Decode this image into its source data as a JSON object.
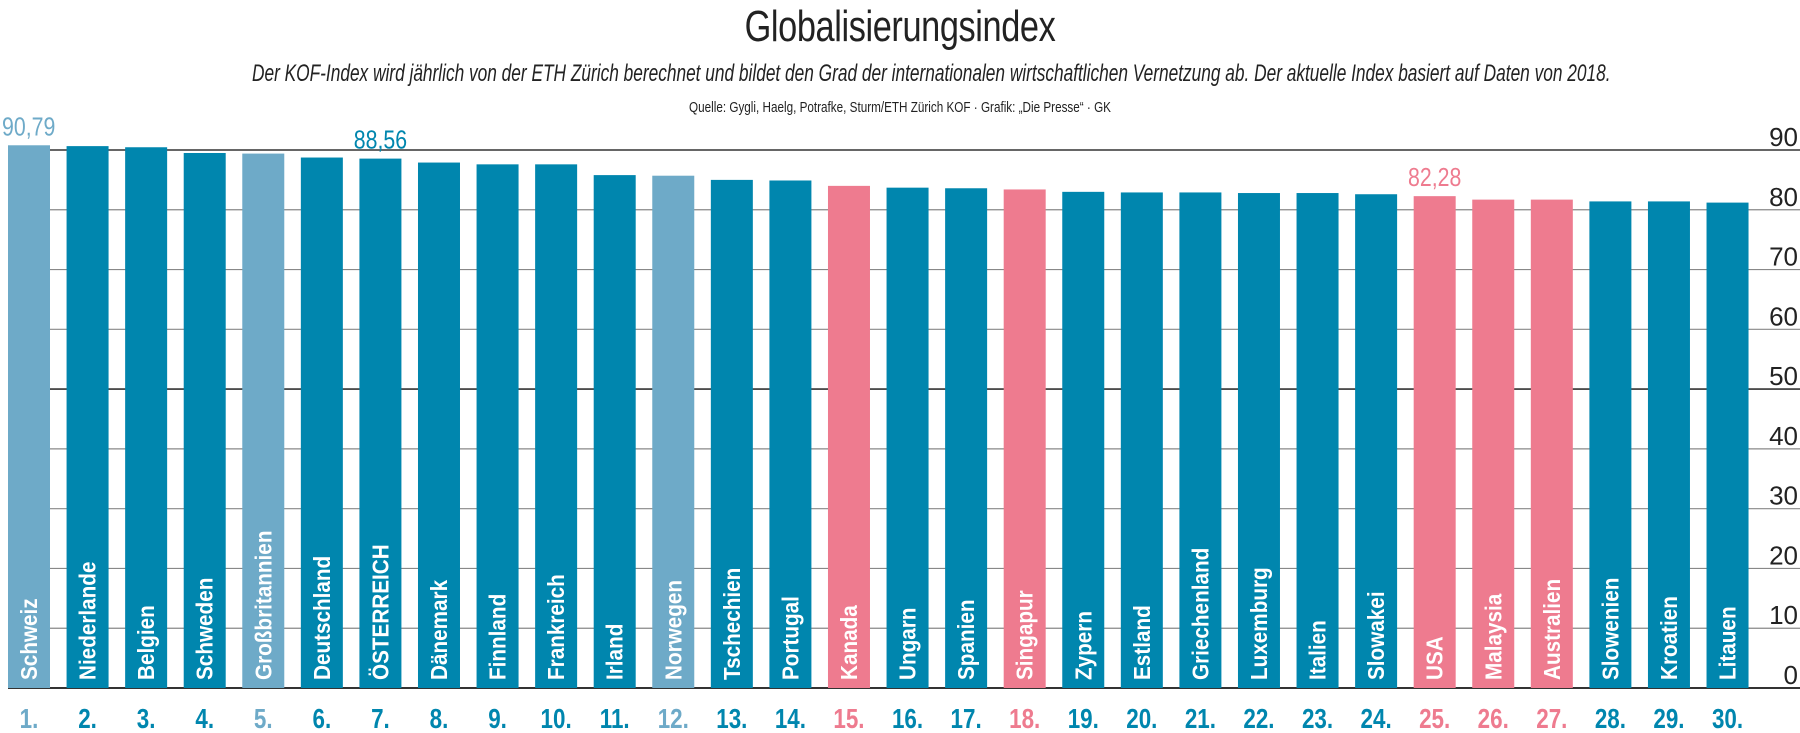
{
  "title": "Globalisierungsindex",
  "subtitle": "Der KOF-Index wird jährlich von der ETH Zürich berechnet und bildet den Grad der internationalen wirtschaftlichen Vernetzung ab. Der aktuelle Index basiert auf Daten von 2018.",
  "source": "Quelle: Gygli, Haelg, Potrafke, Sturm/ETH Zürich KOF  · Grafik: „Die Presse“ · GK",
  "colors": {
    "default": "#0086ae",
    "highlight_light": "#6eaac8",
    "highlight_pink": "#ee7b8f"
  },
  "chart_data": {
    "type": "bar",
    "orientation": "vertical",
    "ylim": [
      0,
      90
    ],
    "yticks": [
      0,
      10,
      20,
      30,
      40,
      50,
      60,
      70,
      80,
      90
    ],
    "yaxis_position": "right",
    "grid": true,
    "categories": [
      "Schweiz",
      "Niederlande",
      "Belgien",
      "Schweden",
      "Großbritannien",
      "Deutschland",
      "ÖSTERREICH",
      "Dänemark",
      "Finnland",
      "Frankreich",
      "Irland",
      "Norwegen",
      "Tschechien",
      "Portugal",
      "Kanada",
      "Ungarn",
      "Spanien",
      "Singapur",
      "Zypern",
      "Estland",
      "Griechenland",
      "Luxemburg",
      "Italien",
      "Slowakei",
      "USA",
      "Malaysia",
      "Australien",
      "Slowenien",
      "Kroatien",
      "Litauen"
    ],
    "ranks": [
      "1.",
      "2.",
      "3.",
      "4.",
      "5.",
      "6.",
      "7.",
      "8.",
      "9.",
      "10.",
      "11.",
      "12.",
      "13.",
      "14.",
      "15.",
      "16.",
      "17.",
      "18.",
      "19.",
      "20.",
      "21.",
      "22.",
      "23.",
      "24.",
      "25.",
      "26.",
      "27.",
      "28.",
      "29.",
      "30."
    ],
    "values": [
      90.79,
      90.65,
      90.46,
      89.5,
      89.4,
      88.74,
      88.56,
      87.9,
      87.6,
      87.6,
      85.8,
      85.7,
      85.0,
      84.9,
      84.0,
      83.7,
      83.6,
      83.4,
      83.0,
      82.9,
      82.9,
      82.8,
      82.8,
      82.6,
      82.28,
      81.7,
      81.7,
      81.4,
      81.4,
      81.2
    ],
    "color_groups": [
      "light",
      "default",
      "default",
      "default",
      "light",
      "default",
      "default",
      "default",
      "default",
      "default",
      "default",
      "light",
      "default",
      "default",
      "pink",
      "default",
      "default",
      "pink",
      "default",
      "default",
      "default",
      "default",
      "default",
      "default",
      "pink",
      "pink",
      "pink",
      "default",
      "default",
      "default"
    ],
    "data_labels": [
      {
        "index": 0,
        "text": "90,79"
      },
      {
        "index": 6,
        "text": "88,56"
      },
      {
        "index": 24,
        "text": "82,28"
      }
    ]
  }
}
